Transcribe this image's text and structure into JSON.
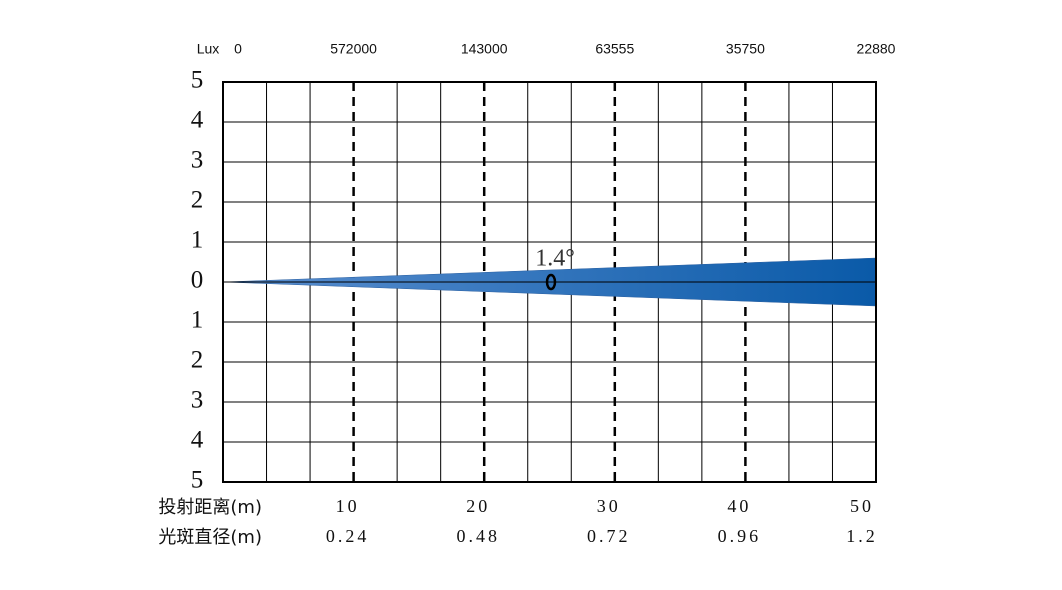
{
  "chart_data": {
    "type": "beam",
    "lux_label": "Lux",
    "lux_x": [
      0,
      10,
      20,
      30,
      40,
      50
    ],
    "lux": [
      0,
      572000,
      143000,
      63555,
      35750,
      22880
    ],
    "distance_label": "投射距离(m)",
    "x": [
      10,
      20,
      30,
      40,
      50
    ],
    "spot_label": "光斑直径(m)",
    "spot_diameter": [
      0.24,
      0.48,
      0.72,
      0.96,
      1.2
    ],
    "angle_label": "1.4°",
    "xlim": [
      0,
      50
    ],
    "xticks": [
      10,
      20,
      30,
      40
    ],
    "ylim": [
      -5,
      5
    ],
    "yticks": [
      5,
      4,
      3,
      2,
      1,
      0,
      {
        "value": -1,
        "label": "1"
      },
      {
        "value": -2,
        "label": "2"
      },
      {
        "value": -3,
        "label": "3"
      },
      {
        "value": -4,
        "label": "4"
      },
      {
        "value": -5,
        "label": "5"
      }
    ],
    "color": "#0a5aa8",
    "grid": true
  }
}
